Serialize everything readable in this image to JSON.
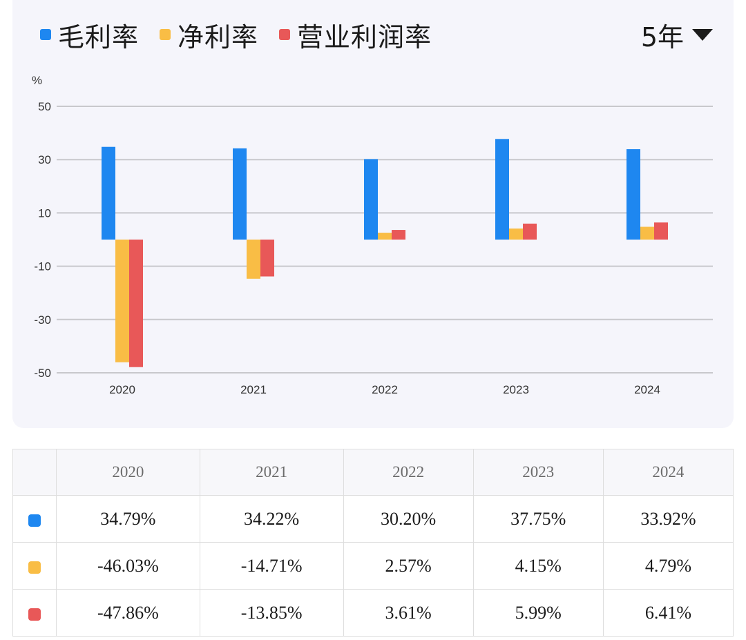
{
  "legend": [
    {
      "label": "毛利率",
      "color": "#1e87f0"
    },
    {
      "label": "净利率",
      "color": "#f9bd45"
    },
    {
      "label": "营业利润率",
      "color": "#e85858"
    }
  ],
  "period_selector": {
    "label": "5年",
    "icon": "caret-down-icon"
  },
  "chart_data": {
    "type": "bar",
    "ylabel": "%",
    "ylim": [
      -50,
      50
    ],
    "yticks": [
      50,
      30,
      10,
      -10,
      -30,
      -50
    ],
    "grid": true,
    "legend_position": "top-left",
    "categories": [
      "2020",
      "2021",
      "2022",
      "2023",
      "2024"
    ],
    "series": [
      {
        "name": "毛利率",
        "color": "#1e87f0",
        "values": [
          34.79,
          34.22,
          30.2,
          37.75,
          33.92
        ]
      },
      {
        "name": "净利率",
        "color": "#f9bd45",
        "values": [
          -46.03,
          -14.71,
          2.57,
          4.15,
          4.79
        ]
      },
      {
        "name": "营业利润率",
        "color": "#e85858",
        "values": [
          -47.86,
          -13.85,
          3.61,
          5.99,
          6.41
        ]
      }
    ]
  },
  "table": {
    "headers": [
      "2020",
      "2021",
      "2022",
      "2023",
      "2024"
    ],
    "rows": [
      {
        "color": "#1e87f0",
        "cells": [
          "34.79%",
          "34.22%",
          "30.20%",
          "37.75%",
          "33.92%"
        ]
      },
      {
        "color": "#f9bd45",
        "cells": [
          "-46.03%",
          "-14.71%",
          "2.57%",
          "4.15%",
          "4.79%"
        ]
      },
      {
        "color": "#e85858",
        "cells": [
          "-47.86%",
          "-13.85%",
          "3.61%",
          "5.99%",
          "6.41%"
        ]
      }
    ]
  }
}
